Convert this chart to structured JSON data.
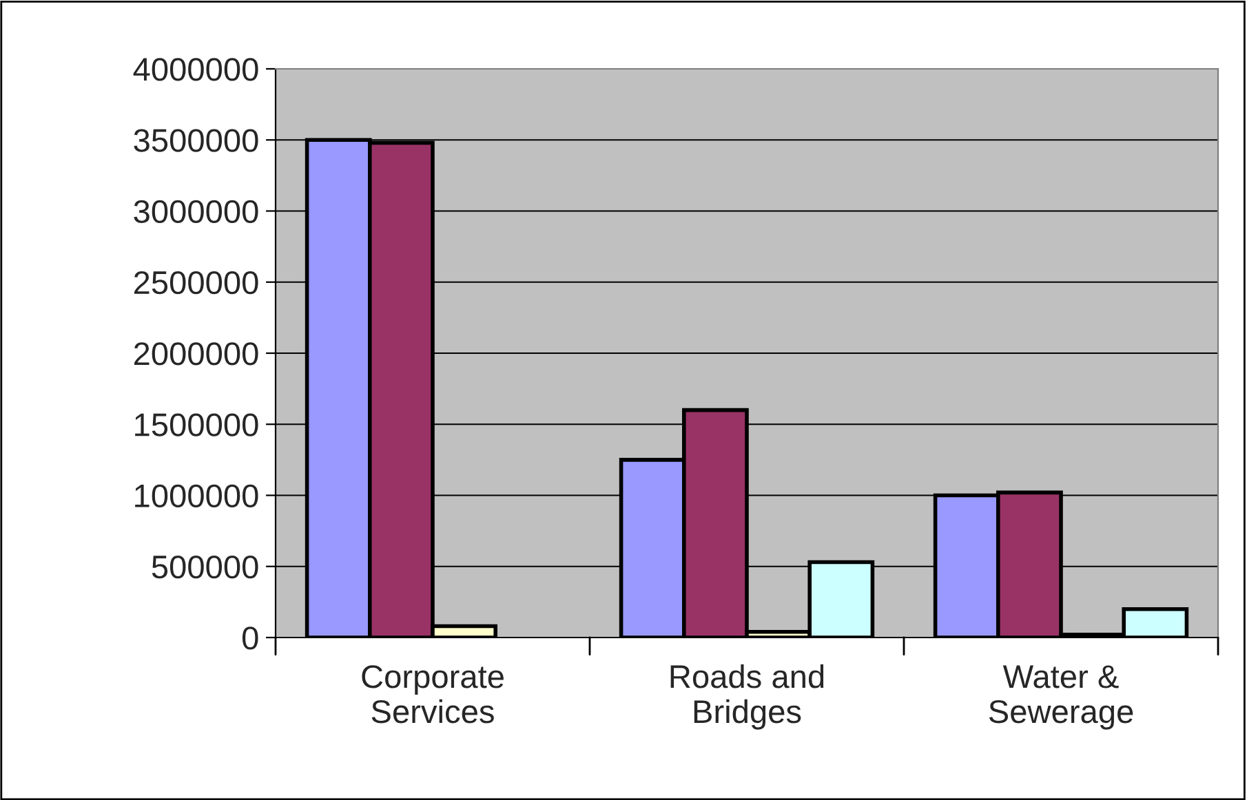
{
  "chart_data": {
    "type": "bar",
    "categories": [
      "Corporate\nServices",
      "Roads and\nBridges",
      "Water &\nSewerage"
    ],
    "series": [
      {
        "color": "#9999ff",
        "values": [
          3500000,
          1250000,
          1000000
        ]
      },
      {
        "color": "#993366",
        "values": [
          3480000,
          1600000,
          1020000
        ]
      },
      {
        "color": "#ffffcc",
        "values": [
          80000,
          40000,
          20000
        ]
      },
      {
        "color": "#ccffff",
        "values": [
          null,
          530000,
          200000
        ]
      }
    ],
    "ylim": [
      0,
      4000000
    ],
    "yticks": [
      0,
      500000,
      1000000,
      1500000,
      2000000,
      2500000,
      3000000,
      3500000,
      4000000
    ],
    "grid": "y"
  }
}
